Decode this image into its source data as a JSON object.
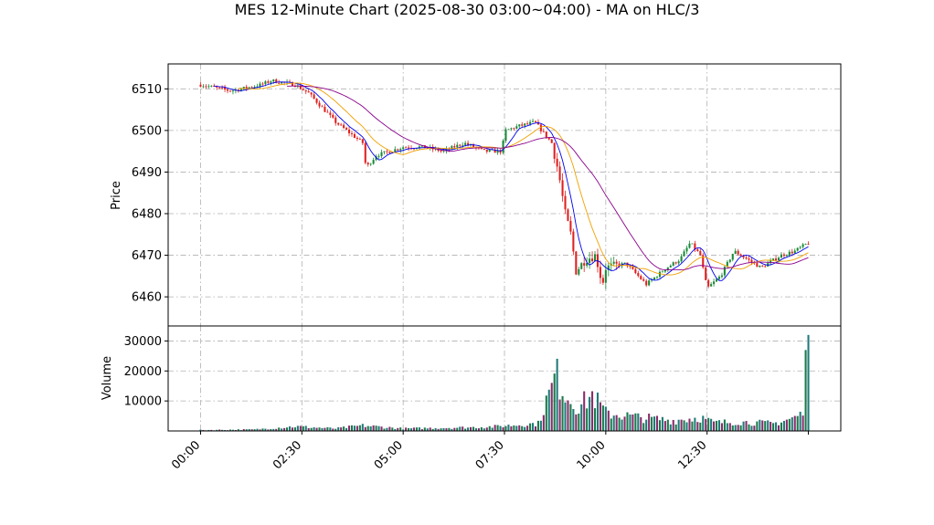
{
  "chart_data": {
    "type": "candlestick",
    "title": "MES 12-Minute Chart (2025-08-30 03:00~04:00) - MA on HLC/3",
    "x_tick_labels": [
      "00:00",
      "02:30",
      "05:00",
      "07:30",
      "10:00",
      "12:30"
    ],
    "x_tick_minutes": [
      0,
      150,
      300,
      450,
      600,
      750
    ],
    "x_range_minutes": [
      -48,
      948
    ],
    "price_panel": {
      "ylabel": "Price",
      "ylim": [
        6453,
        6516
      ],
      "yticks": [
        6460,
        6470,
        6480,
        6490,
        6500,
        6510
      ]
    },
    "volume_panel": {
      "ylabel": "Volume",
      "ylim": [
        0,
        35000
      ],
      "yticks": [
        10000,
        20000,
        30000
      ],
      "ytick_labels": [
        "10000",
        "20000",
        "30000"
      ]
    },
    "candle_colors": {
      "up": "#1a8a3a",
      "down": "#e02020"
    },
    "volume_colors": [
      "#1f7a7a",
      "#8a2a6a",
      "#1a7a4a"
    ],
    "ma_colors": {
      "fast": "#0000ee",
      "mid": "#f0a000",
      "slow": "#8b008b"
    },
    "price_keypoints": [
      [
        0,
        6511
      ],
      [
        45,
        6509.5
      ],
      [
        90,
        6511
      ],
      [
        105,
        6512
      ],
      [
        140,
        6511
      ],
      [
        160,
        6509
      ],
      [
        200,
        6502
      ],
      [
        240,
        6497
      ],
      [
        245,
        6491
      ],
      [
        260,
        6494
      ],
      [
        300,
        6496
      ],
      [
        330,
        6496
      ],
      [
        360,
        6495
      ],
      [
        390,
        6497
      ],
      [
        420,
        6495
      ],
      [
        445,
        6495
      ],
      [
        452,
        6500
      ],
      [
        470,
        6501
      ],
      [
        495,
        6502
      ],
      [
        505,
        6500
      ],
      [
        520,
        6497
      ],
      [
        530,
        6490
      ],
      [
        540,
        6480
      ],
      [
        550,
        6474
      ],
      [
        555,
        6466
      ],
      [
        570,
        6469
      ],
      [
        585,
        6470
      ],
      [
        595,
        6463
      ],
      [
        600,
        6467
      ],
      [
        630,
        6468
      ],
      [
        660,
        6463
      ],
      [
        690,
        6467
      ],
      [
        710,
        6469
      ],
      [
        725,
        6473
      ],
      [
        740,
        6470
      ],
      [
        750,
        6462
      ],
      [
        770,
        6465
      ],
      [
        790,
        6471
      ],
      [
        810,
        6469
      ],
      [
        830,
        6467
      ],
      [
        860,
        6470
      ],
      [
        880,
        6471
      ],
      [
        900,
        6473
      ]
    ],
    "volume_keypoints": [
      [
        0,
        300
      ],
      [
        80,
        500
      ],
      [
        140,
        1500
      ],
      [
        200,
        800
      ],
      [
        240,
        1800
      ],
      [
        300,
        800
      ],
      [
        400,
        1200
      ],
      [
        440,
        1500
      ],
      [
        455,
        1800
      ],
      [
        500,
        2500
      ],
      [
        510,
        9000
      ],
      [
        520,
        14000
      ],
      [
        525,
        19000
      ],
      [
        535,
        15000
      ],
      [
        545,
        11000
      ],
      [
        560,
        8000
      ],
      [
        580,
        12000
      ],
      [
        600,
        6000
      ],
      [
        650,
        4500
      ],
      [
        700,
        3500
      ],
      [
        740,
        4500
      ],
      [
        760,
        2800
      ],
      [
        800,
        3000
      ],
      [
        850,
        2500
      ],
      [
        880,
        4500
      ],
      [
        893,
        6000
      ],
      [
        895,
        10000
      ],
      [
        897,
        32000
      ]
    ]
  }
}
